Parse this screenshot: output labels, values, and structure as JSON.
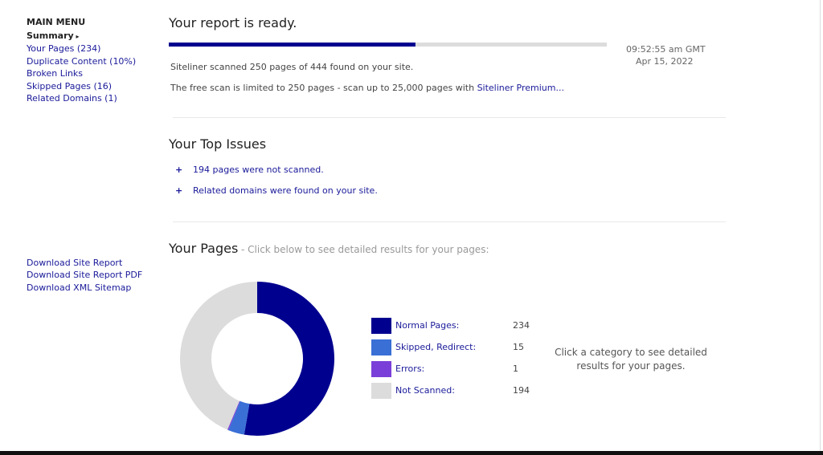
{
  "menu": {
    "title": "MAIN MENU",
    "items": [
      "Summary",
      "Your Pages (234)",
      "Duplicate Content (10%)",
      "Broken Links",
      "Skipped Pages (16)",
      "Related Domains (1)"
    ]
  },
  "downloads": [
    "Download Site Report",
    "Download Site Report PDF",
    "Download XML Sitemap"
  ],
  "report": {
    "title": "Your report is ready.",
    "time": "09:52:55 am GMT",
    "date": "Apr 15, 2022",
    "scan_text": "Siteliner scanned 250 pages of 444 found on your site.",
    "limit_text": "The free scan is limited to 250 pages - scan up to 25,000 pages with",
    "premium_link": "Siteliner Premium..."
  },
  "issues": {
    "title": "Your Top Issues",
    "items": [
      "194 pages were not scanned.",
      "Related domains were found on your site."
    ]
  },
  "pages": {
    "title": "Your Pages",
    "subtitle": "- Click below to see detailed results for your pages:",
    "hint": "Click a category to see detailed results for your pages.",
    "type": "pie",
    "series": [
      {
        "name": "Normal Pages:",
        "color": "#00008f",
        "value": 234
      },
      {
        "name": "Skipped, Redirect:",
        "color": "#3a6fd6",
        "value": 15
      },
      {
        "name": "Errors:",
        "color": "#7a3fd8",
        "value": 1
      },
      {
        "name": "Not Scanned:",
        "color": "#dcdcdc",
        "value": 194
      }
    ]
  }
}
